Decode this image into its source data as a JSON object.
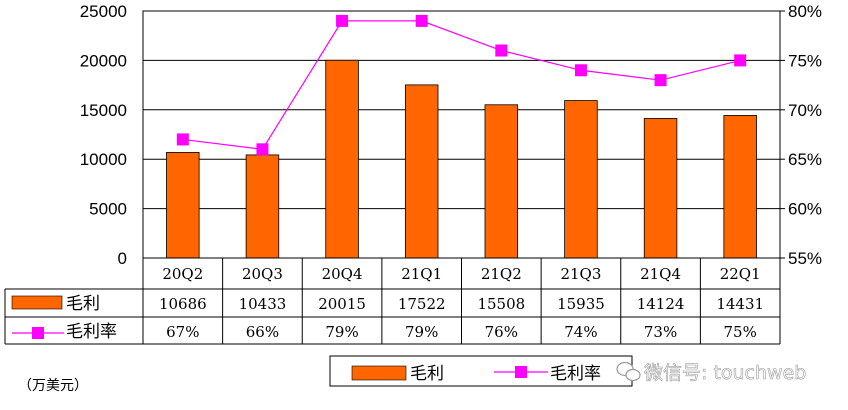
{
  "chart_data": {
    "type": "bar",
    "categories": [
      "20Q2",
      "20Q3",
      "20Q4",
      "21Q1",
      "21Q2",
      "21Q3",
      "21Q4",
      "22Q1"
    ],
    "series": [
      {
        "name": "毛利",
        "type": "bar",
        "axis": "left",
        "values": [
          10686,
          10433,
          20015,
          17522,
          15508,
          15935,
          14124,
          14431
        ],
        "color": "#ff6600"
      },
      {
        "name": "毛利率",
        "type": "line",
        "axis": "right",
        "values": [
          67,
          66,
          79,
          79,
          76,
          74,
          73,
          75
        ],
        "value_labels": [
          "67%",
          "66%",
          "79%",
          "79%",
          "76%",
          "74%",
          "73%",
          "75%"
        ],
        "color": "#ff00ff"
      }
    ],
    "y_left": {
      "min": 0,
      "max": 25000,
      "ticks": [
        "0",
        "5000",
        "10000",
        "15000",
        "20000",
        "25000"
      ]
    },
    "y_right": {
      "min": 55,
      "max": 80,
      "ticks": [
        "55%",
        "60%",
        "65%",
        "70%",
        "75%",
        "80%"
      ]
    },
    "unit_label": "（万美元）",
    "grid": true,
    "legend_position": "bottom",
    "data_table": true
  },
  "watermark": "微信号: touchweb"
}
